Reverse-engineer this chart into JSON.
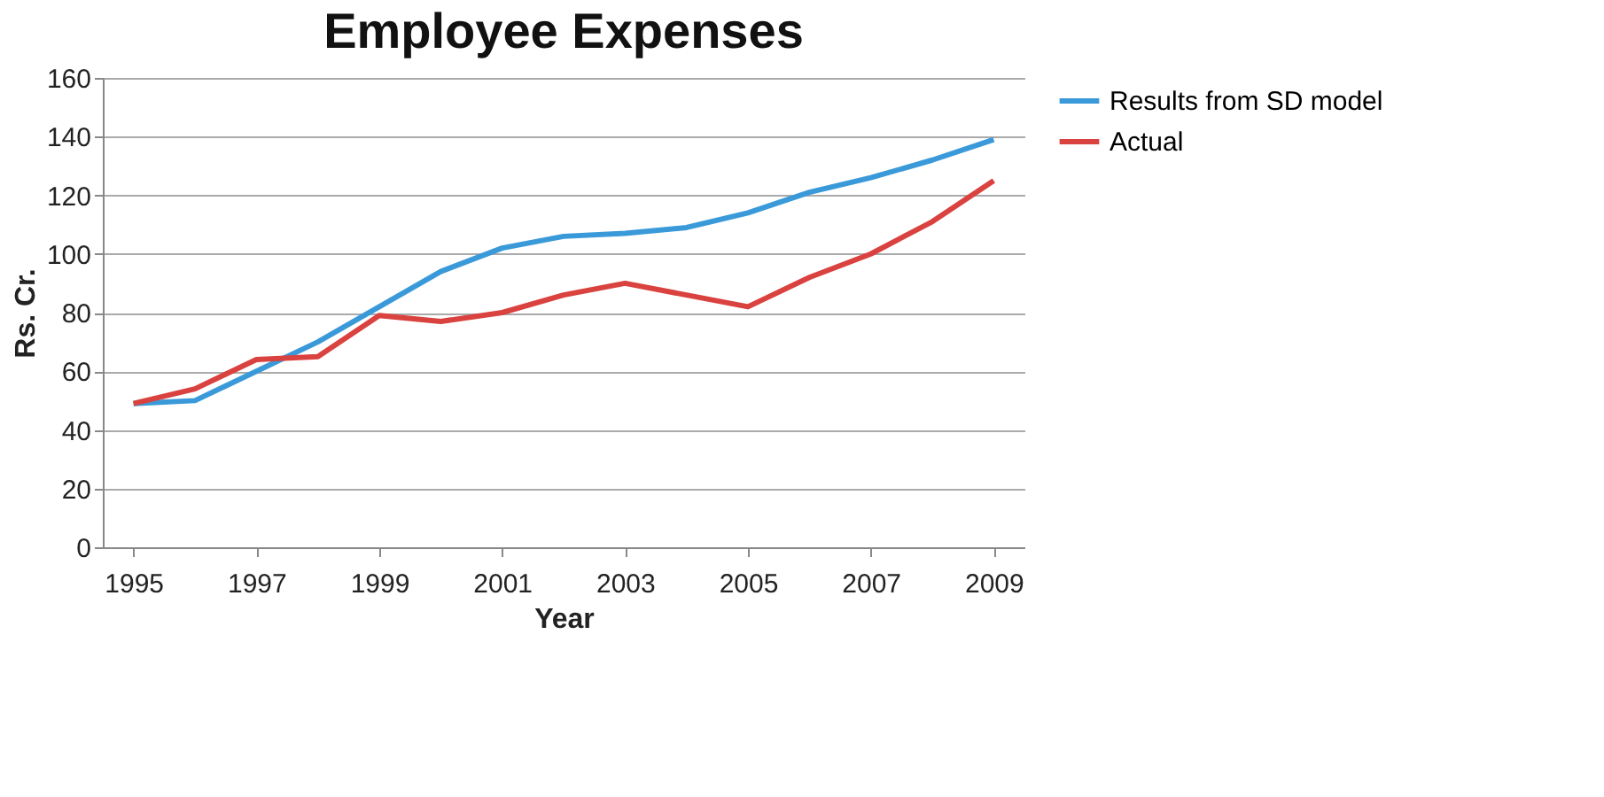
{
  "chart_data": {
    "type": "line",
    "title": "Employee Expenses",
    "xlabel": "Year",
    "ylabel": "Rs. Cr.",
    "x": [
      1995,
      1996,
      1997,
      1998,
      1999,
      2000,
      2001,
      2002,
      2003,
      2004,
      2005,
      2006,
      2007,
      2008,
      2009
    ],
    "series": [
      {
        "name": "Results from SD model",
        "color": "#3a9ad9",
        "values": [
          49,
          50,
          60,
          70,
          82,
          94,
          102,
          106,
          107,
          109,
          114,
          121,
          126,
          132,
          139
        ]
      },
      {
        "name": "Actual",
        "color": "#d9423f",
        "values": [
          49,
          54,
          64,
          65,
          79,
          77,
          80,
          86,
          90,
          86,
          82,
          92,
          100,
          111,
          125
        ]
      }
    ],
    "xlim": [
      1994.5,
      2009.5
    ],
    "xticks": [
      1995,
      1997,
      1999,
      2001,
      2003,
      2005,
      2007,
      2009
    ],
    "ylim": [
      0,
      160
    ],
    "yticks": [
      0,
      20,
      40,
      60,
      80,
      100,
      120,
      140,
      160
    ],
    "grid": "y",
    "legend": "right",
    "marker": "none",
    "line_style": "solid"
  }
}
